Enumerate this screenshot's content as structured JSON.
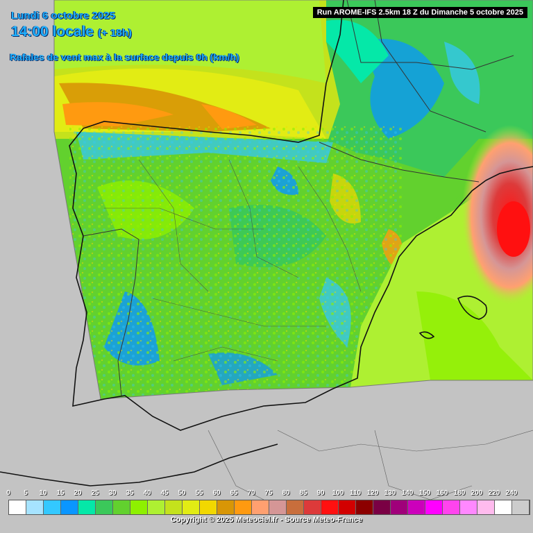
{
  "header": {
    "date": "Lundi 6 octobre 2025",
    "time": "14:00 locale",
    "offset": "(+ 18h)",
    "parameter": "Rafales de vent max à la surface depuis 0h (km/h)"
  },
  "run_info": "Run AROME-IFS 2.5km 18 Z du Dimanche 5 octobre 2025",
  "legend": {
    "labels": [
      "0",
      "5",
      "10",
      "15",
      "20",
      "25",
      "30",
      "35",
      "40",
      "45",
      "50",
      "55",
      "60",
      "65",
      "70",
      "75",
      "80",
      "85",
      "90",
      "100",
      "110",
      "120",
      "130",
      "140",
      "150",
      "160",
      "180",
      "200",
      "220",
      "240"
    ],
    "colors": [
      "#ffffff",
      "#a6e3ff",
      "#33c8ff",
      "#0a96ff",
      "#05e8a8",
      "#3bc85a",
      "#62d12e",
      "#8ef000",
      "#aef032",
      "#c4e21c",
      "#e2ec14",
      "#f2d800",
      "#d89606",
      "#ff9a10",
      "#ffa070",
      "#d59696",
      "#c86e3c",
      "#dd3a3a",
      "#ff1010",
      "#d20000",
      "#8c0000",
      "#7a0044",
      "#a0007a",
      "#cc00bb",
      "#ff00ff",
      "#ff44ee",
      "#ff88ff",
      "#ffbbee",
      "#ffffff",
      "#cccccc"
    ]
  },
  "copyright": "Copyright © 2025 Meteociel.fr - Source Meteo-France"
}
